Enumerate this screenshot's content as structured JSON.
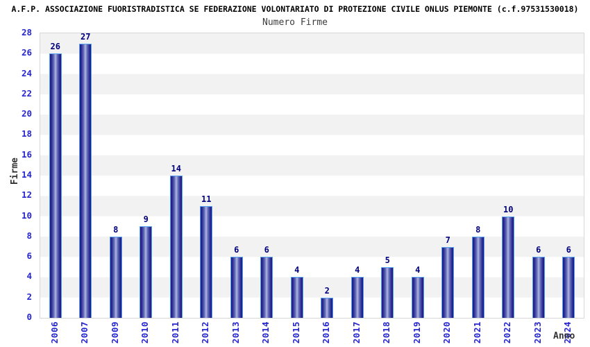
{
  "chart_data": {
    "type": "bar",
    "title": "A.F.P. ASSOCIAZIONE FUORISTRADISTICA SE FEDERAZIONE VOLONTARIATO DI PROTEZIONE CIVILE ONLUS PIEMONTE (c.f.97531530018)",
    "subtitle": "Numero Firme",
    "xlabel": "Anno",
    "ylabel": "Firme",
    "categories": [
      "2006",
      "2007",
      "2009",
      "2010",
      "2011",
      "2012",
      "2013",
      "2014",
      "2015",
      "2016",
      "2017",
      "2018",
      "2019",
      "2020",
      "2021",
      "2022",
      "2023",
      "2024"
    ],
    "values": [
      26,
      27,
      8,
      9,
      14,
      11,
      6,
      6,
      4,
      2,
      4,
      5,
      4,
      7,
      8,
      10,
      6,
      6
    ],
    "ylim": [
      0,
      28
    ],
    "yticks": [
      0,
      2,
      4,
      6,
      8,
      10,
      12,
      14,
      16,
      18,
      20,
      22,
      24,
      26,
      28
    ],
    "grid": "alternating horizontal bands every 2 units",
    "legend": "none",
    "bar_value_labels": true,
    "colors": {
      "axis_label_blue": "#2626cf",
      "value_label_navy": "#00007d",
      "bar_dark": "#191980",
      "bar_light": "#b2b8e2",
      "bar_border": "#55a0ef",
      "band_gray": "#f2f2f2",
      "plot_border": "#d8d8d8"
    }
  }
}
